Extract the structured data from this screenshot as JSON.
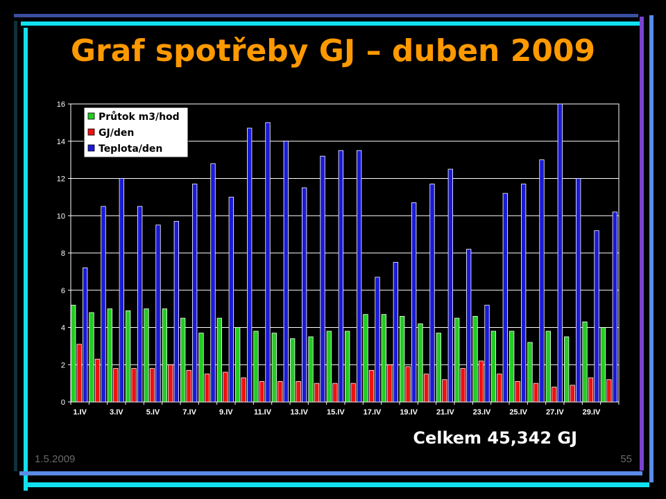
{
  "slide": {
    "title": "Graf spotřeby GJ – duben 2009",
    "total": "Celkem 45,342 GJ",
    "date": "1.5.2009",
    "page_number": "55"
  },
  "colors": {
    "title": "#ff9900",
    "background": "#000000",
    "series": [
      "#22cc22",
      "#ee1111",
      "#1a1ad6"
    ]
  },
  "chart_data": {
    "type": "bar",
    "categories": [
      "1.IV",
      "2.IV",
      "3.IV",
      "4.IV",
      "5.IV",
      "6.IV",
      "7.IV",
      "8.IV",
      "9.IV",
      "10.IV",
      "11.IV",
      "12.IV",
      "13.IV",
      "14.IV",
      "15.IV",
      "16.IV",
      "17.IV",
      "18.IV",
      "19.IV",
      "20.IV",
      "21.IV",
      "22.IV",
      "23.IV",
      "24.IV",
      "25.IV",
      "26.IV",
      "27.IV",
      "28.IV",
      "29.IV",
      "30.IV"
    ],
    "x_tick_labels": [
      "1.IV",
      "3.IV",
      "5.IV",
      "7.IV",
      "9.IV",
      "11.IV",
      "13.IV",
      "15.IV",
      "17.IV",
      "19.IV",
      "21.IV",
      "23.IV",
      "25.IV",
      "27.IV",
      "29.IV"
    ],
    "series": [
      {
        "name": "Průtok m3/hod",
        "values": [
          5.2,
          4.8,
          5.0,
          4.9,
          5.0,
          5.0,
          4.5,
          3.7,
          4.5,
          4.0,
          3.8,
          3.7,
          3.4,
          3.5,
          3.8,
          3.8,
          4.7,
          4.7,
          4.6,
          4.2,
          3.7,
          4.5,
          4.6,
          3.8,
          3.8,
          3.2,
          3.8,
          3.5,
          4.3,
          4.0
        ]
      },
      {
        "name": "GJ/den",
        "values": [
          3.1,
          2.3,
          1.8,
          1.8,
          1.8,
          2.0,
          1.7,
          1.5,
          1.6,
          1.3,
          1.1,
          1.1,
          1.1,
          1.0,
          1.0,
          1.0,
          1.7,
          2.0,
          1.9,
          1.5,
          1.2,
          1.8,
          2.2,
          1.5,
          1.1,
          1.0,
          0.8,
          0.9,
          1.3,
          1.2
        ]
      },
      {
        "name": "Teplota/den",
        "values": [
          7.2,
          10.5,
          12.0,
          10.5,
          9.5,
          9.7,
          11.7,
          12.8,
          11.0,
          14.7,
          15.0,
          14.0,
          11.5,
          13.2,
          13.5,
          13.5,
          6.7,
          7.5,
          10.7,
          11.7,
          12.5,
          8.2,
          5.2,
          11.2,
          11.7,
          13.0,
          16.0,
          12.0,
          9.2,
          10.2
        ]
      }
    ],
    "ylim": [
      0,
      16
    ],
    "yticks": [
      0,
      2,
      4,
      6,
      8,
      10,
      12,
      14,
      16
    ],
    "grid": true,
    "legend": "top-left",
    "title": "",
    "xlabel": "",
    "ylabel": ""
  }
}
